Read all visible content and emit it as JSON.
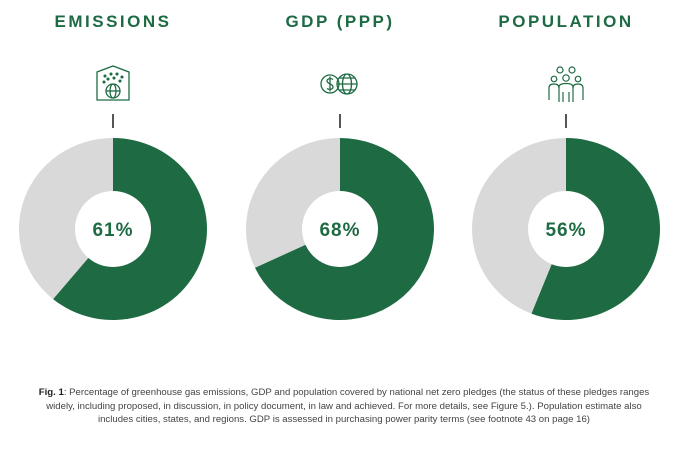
{
  "chart_data": [
    {
      "type": "pie",
      "title": "EMISSIONS",
      "icon": "emissions-globe-icon",
      "values": [
        61,
        39
      ],
      "center_label": "61%",
      "colors": [
        "#1e6b43",
        "#d9d9d9"
      ]
    },
    {
      "type": "pie",
      "title": "GDP (PPP)",
      "icon": "dollar-globe-icon",
      "values": [
        68,
        32
      ],
      "center_label": "68%",
      "colors": [
        "#1e6b43",
        "#d9d9d9"
      ]
    },
    {
      "type": "pie",
      "title": "POPULATION",
      "icon": "people-group-icon",
      "values": [
        56,
        44
      ],
      "center_label": "56%",
      "colors": [
        "#1e6b43",
        "#d9d9d9"
      ]
    }
  ],
  "caption": {
    "label": "Fig. 1",
    "text": ": Percentage of greenhouse gas emissions, GDP and population covered by national net zero pledges (the status of these pledges ranges widely, including proposed, in discussion, in policy document, in law and achieved. For more details, see Figure 5.). Population estimate also includes cities, states, and regions. GDP is assessed in purchasing power parity terms (see footnote 43 on page 16)"
  }
}
